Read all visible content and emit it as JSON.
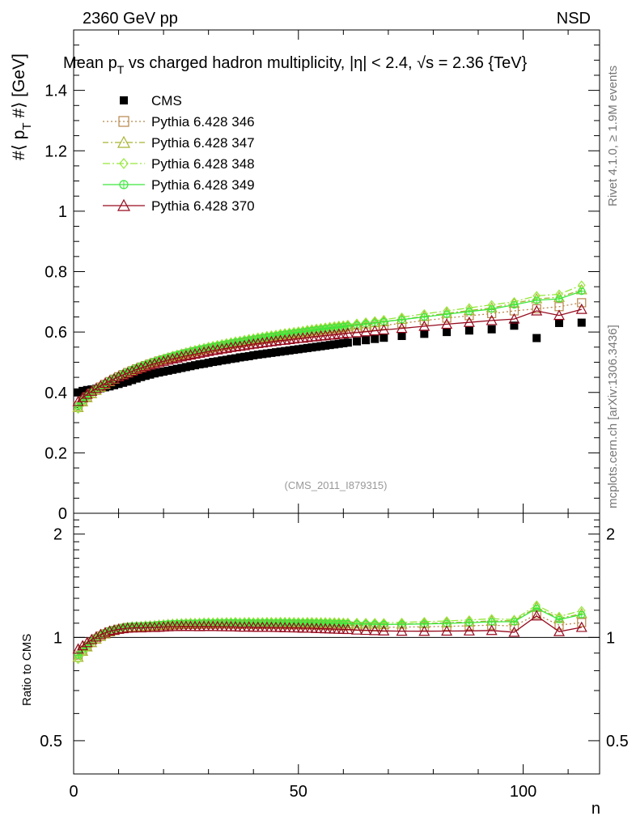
{
  "header": {
    "left_label": "2360 GeV pp",
    "right_label": "NSD"
  },
  "side": {
    "rivet": "Rivet 4.1.0, ≥ 1.9M events",
    "mcplots": "mcplots.cern.ch [arXiv:1306.3436]"
  },
  "watermark": "(CMS_2011_I879315)",
  "colors": {
    "cms": "#000000",
    "p346": "#b8864b",
    "p347": "#a8b432",
    "p348": "#96e83c",
    "p349": "#3ce83c",
    "p370": "#960a1e"
  },
  "chart_data": {
    "type": "scatter",
    "title_parts": {
      "a": "Mean p",
      "a_sub": "T",
      "b": " vs charged hadron multiplicity, ",
      "c": "|η| < 2.4, ",
      "d": "√s",
      "e": " = 2.36 {TeV}"
    },
    "ylabel_main": "#⟨ p_T #⟩ [GeV]",
    "ylabel_main_parts": {
      "a": "#⟨ p",
      "sub": "T",
      "b": " #⟩ [GeV]"
    },
    "ylabel_ratio": "Ratio to CMS",
    "xlabel": "n",
    "xlim": [
      0,
      117
    ],
    "ylim_main": [
      0,
      1.6
    ],
    "ylim_ratio": [
      0.4,
      2.3
    ],
    "ratio_scale": "log",
    "xticks": [
      {
        "v": 0,
        "label": "0"
      },
      {
        "v": 50,
        "label": "50"
      },
      {
        "v": 100,
        "label": "100"
      }
    ],
    "yticks_main": [
      {
        "v": 0,
        "label": "0"
      },
      {
        "v": 0.2,
        "label": "0.2"
      },
      {
        "v": 0.4,
        "label": "0.4"
      },
      {
        "v": 0.6,
        "label": "0.6"
      },
      {
        "v": 0.8,
        "label": "0.8"
      },
      {
        "v": 1.0,
        "label": "1"
      },
      {
        "v": 1.2,
        "label": "1.2"
      },
      {
        "v": 1.4,
        "label": "1.4"
      }
    ],
    "yticks_ratio": [
      {
        "v": 0.5,
        "label": "0.5"
      },
      {
        "v": 1,
        "label": "1"
      },
      {
        "v": 2,
        "label": "2"
      }
    ],
    "x": [
      1,
      2,
      3,
      4,
      5,
      6,
      7,
      8,
      9,
      10,
      11,
      12,
      13,
      14,
      15,
      16,
      17,
      18,
      19,
      20,
      21,
      22,
      23,
      24,
      25,
      26,
      27,
      28,
      29,
      30,
      31,
      32,
      33,
      34,
      35,
      36,
      37,
      38,
      39,
      40,
      41,
      42,
      43,
      44,
      45,
      46,
      47,
      48,
      49,
      50,
      51,
      52,
      53,
      54,
      55,
      56,
      57,
      58,
      59,
      60,
      61,
      63,
      65,
      67,
      69,
      73,
      78,
      83,
      88,
      93,
      98,
      103,
      108,
      113
    ],
    "series": [
      {
        "name": "CMS",
        "key": "cms",
        "style": "cms",
        "values": [
          0.4,
          0.405,
          0.408,
          0.41,
          0.412,
          0.414,
          0.417,
          0.42,
          0.424,
          0.428,
          0.432,
          0.436,
          0.441,
          0.446,
          0.451,
          0.455,
          0.459,
          0.463,
          0.466,
          0.469,
          0.472,
          0.475,
          0.478,
          0.481,
          0.484,
          0.487,
          0.49,
          0.493,
          0.495,
          0.498,
          0.501,
          0.503,
          0.506,
          0.508,
          0.511,
          0.513,
          0.516,
          0.518,
          0.52,
          0.523,
          0.525,
          0.527,
          0.529,
          0.531,
          0.533,
          0.535,
          0.537,
          0.539,
          0.541,
          0.543,
          0.545,
          0.547,
          0.549,
          0.551,
          0.553,
          0.555,
          0.557,
          0.559,
          0.561,
          0.563,
          0.565,
          0.569,
          0.573,
          0.577,
          0.581,
          0.587,
          0.594,
          0.6,
          0.605,
          0.609,
          0.621,
          0.58,
          0.63,
          0.631
        ]
      },
      {
        "name": "Pythia 6.428 346",
        "key": "p346",
        "style": "square-open",
        "dash": "2,3",
        "values": [
          0.355,
          0.372,
          0.385,
          0.397,
          0.408,
          0.418,
          0.427,
          0.436,
          0.444,
          0.452,
          0.459,
          0.466,
          0.472,
          0.478,
          0.484,
          0.489,
          0.494,
          0.499,
          0.504,
          0.508,
          0.512,
          0.516,
          0.52,
          0.524,
          0.528,
          0.531,
          0.535,
          0.538,
          0.541,
          0.544,
          0.547,
          0.55,
          0.553,
          0.556,
          0.558,
          0.561,
          0.563,
          0.566,
          0.568,
          0.57,
          0.573,
          0.575,
          0.577,
          0.579,
          0.581,
          0.583,
          0.585,
          0.587,
          0.589,
          0.591,
          0.593,
          0.595,
          0.597,
          0.598,
          0.6,
          0.602,
          0.603,
          0.605,
          0.607,
          0.608,
          0.61,
          0.613,
          0.616,
          0.619,
          0.622,
          0.629,
          0.638,
          0.646,
          0.654,
          0.661,
          0.67,
          0.677,
          0.684,
          0.697
        ]
      },
      {
        "name": "Pythia 6.428 347",
        "key": "p347",
        "style": "triangle-open",
        "dash": "7,3,2,3",
        "values": [
          0.35,
          0.369,
          0.383,
          0.396,
          0.407,
          0.417,
          0.427,
          0.436,
          0.444,
          0.452,
          0.459,
          0.466,
          0.473,
          0.479,
          0.485,
          0.491,
          0.496,
          0.501,
          0.506,
          0.51,
          0.515,
          0.519,
          0.523,
          0.527,
          0.531,
          0.535,
          0.538,
          0.542,
          0.545,
          0.548,
          0.551,
          0.554,
          0.557,
          0.56,
          0.563,
          0.566,
          0.568,
          0.571,
          0.573,
          0.576,
          0.578,
          0.581,
          0.583,
          0.585,
          0.587,
          0.59,
          0.592,
          0.594,
          0.596,
          0.598,
          0.6,
          0.602,
          0.604,
          0.606,
          0.608,
          0.61,
          0.612,
          0.614,
          0.616,
          0.617,
          0.619,
          0.623,
          0.627,
          0.631,
          0.634,
          0.642,
          0.652,
          0.662,
          0.671,
          0.68,
          0.695,
          0.71,
          0.715,
          0.74
        ]
      },
      {
        "name": "Pythia 6.428 348",
        "key": "p348",
        "style": "diamond-open",
        "dash": "9,3,2,3",
        "values": [
          0.345,
          0.366,
          0.381,
          0.395,
          0.407,
          0.418,
          0.428,
          0.437,
          0.446,
          0.454,
          0.461,
          0.468,
          0.475,
          0.481,
          0.487,
          0.493,
          0.498,
          0.503,
          0.508,
          0.513,
          0.517,
          0.522,
          0.526,
          0.53,
          0.534,
          0.538,
          0.541,
          0.545,
          0.548,
          0.552,
          0.555,
          0.558,
          0.561,
          0.564,
          0.567,
          0.57,
          0.572,
          0.575,
          0.578,
          0.58,
          0.583,
          0.585,
          0.588,
          0.59,
          0.592,
          0.595,
          0.597,
          0.599,
          0.601,
          0.603,
          0.605,
          0.608,
          0.61,
          0.612,
          0.614,
          0.616,
          0.618,
          0.62,
          0.622,
          0.623,
          0.625,
          0.629,
          0.633,
          0.637,
          0.641,
          0.649,
          0.66,
          0.67,
          0.68,
          0.69,
          0.7,
          0.72,
          0.725,
          0.755
        ]
      },
      {
        "name": "Pythia 6.428 349",
        "key": "p349",
        "style": "circle-cross",
        "dash": "",
        "values": [
          0.355,
          0.373,
          0.387,
          0.4,
          0.411,
          0.421,
          0.431,
          0.44,
          0.448,
          0.455,
          0.463,
          0.469,
          0.476,
          0.482,
          0.488,
          0.493,
          0.498,
          0.503,
          0.508,
          0.512,
          0.517,
          0.521,
          0.525,
          0.529,
          0.532,
          0.536,
          0.539,
          0.543,
          0.546,
          0.549,
          0.552,
          0.555,
          0.558,
          0.561,
          0.564,
          0.567,
          0.569,
          0.572,
          0.574,
          0.577,
          0.579,
          0.582,
          0.584,
          0.586,
          0.588,
          0.591,
          0.593,
          0.595,
          0.597,
          0.599,
          0.601,
          0.603,
          0.605,
          0.607,
          0.609,
          0.611,
          0.613,
          0.614,
          0.616,
          0.618,
          0.62,
          0.623,
          0.627,
          0.63,
          0.634,
          0.641,
          0.65,
          0.659,
          0.668,
          0.676,
          0.69,
          0.705,
          0.71,
          0.735
        ]
      },
      {
        "name": "Pythia 6.428 370",
        "key": "p370",
        "style": "triangle-open",
        "dash": "",
        "values": [
          0.37,
          0.383,
          0.394,
          0.404,
          0.413,
          0.422,
          0.43,
          0.438,
          0.445,
          0.452,
          0.458,
          0.464,
          0.47,
          0.476,
          0.481,
          0.486,
          0.491,
          0.495,
          0.499,
          0.503,
          0.507,
          0.511,
          0.514,
          0.518,
          0.521,
          0.524,
          0.527,
          0.53,
          0.533,
          0.536,
          0.539,
          0.541,
          0.544,
          0.546,
          0.549,
          0.551,
          0.553,
          0.555,
          0.558,
          0.56,
          0.562,
          0.564,
          0.566,
          0.568,
          0.57,
          0.572,
          0.573,
          0.575,
          0.577,
          0.579,
          0.58,
          0.582,
          0.584,
          0.585,
          0.587,
          0.588,
          0.59,
          0.591,
          0.593,
          0.594,
          0.596,
          0.598,
          0.601,
          0.604,
          0.607,
          0.612,
          0.619,
          0.626,
          0.632,
          0.638,
          0.643,
          0.67,
          0.655,
          0.675
        ]
      }
    ]
  }
}
